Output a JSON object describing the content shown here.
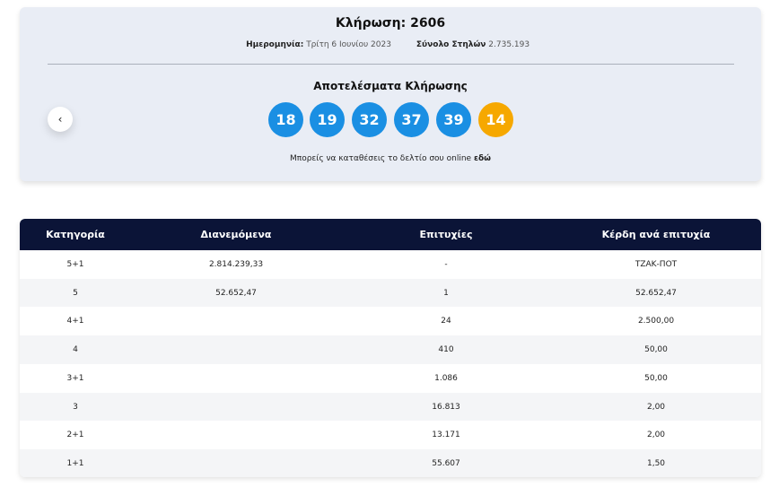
{
  "draw": {
    "title": "Κλήρωση: 2606",
    "date_label": "Ημερομηνία:",
    "date_value": "Τρίτη 6 Ιουνίου 2023",
    "columns_label": "Σύνολο Στηλών",
    "columns_value": "2.735.193",
    "results_title": "Αποτελέσματα Κλήρωσης",
    "numbers": [
      "18",
      "19",
      "32",
      "37",
      "39"
    ],
    "joker": "14",
    "note_text": "Μπορείς να καταθέσεις το δελτίο σου online",
    "note_link": "εδώ"
  },
  "table": {
    "headers": [
      "Κατηγορία",
      "Διανεμόμενα",
      "Επιτυχίες",
      "Κέρδη ανά επιτυχία"
    ],
    "rows": [
      [
        "5+1",
        "2.814.239,33",
        "-",
        "ΤΖΑΚ-ΠΟΤ"
      ],
      [
        "5",
        "52.652,47",
        "1",
        "52.652,47"
      ],
      [
        "4+1",
        null,
        "24",
        "2.500,00"
      ],
      [
        "4",
        null,
        "410",
        "50,00"
      ],
      [
        "3+1",
        null,
        "1.086",
        "50,00"
      ],
      [
        "3",
        null,
        "16.813",
        "2,00"
      ],
      [
        "2+1",
        null,
        "13.171",
        "2,00"
      ],
      [
        "1+1",
        null,
        "55.607",
        "1,50"
      ]
    ]
  }
}
